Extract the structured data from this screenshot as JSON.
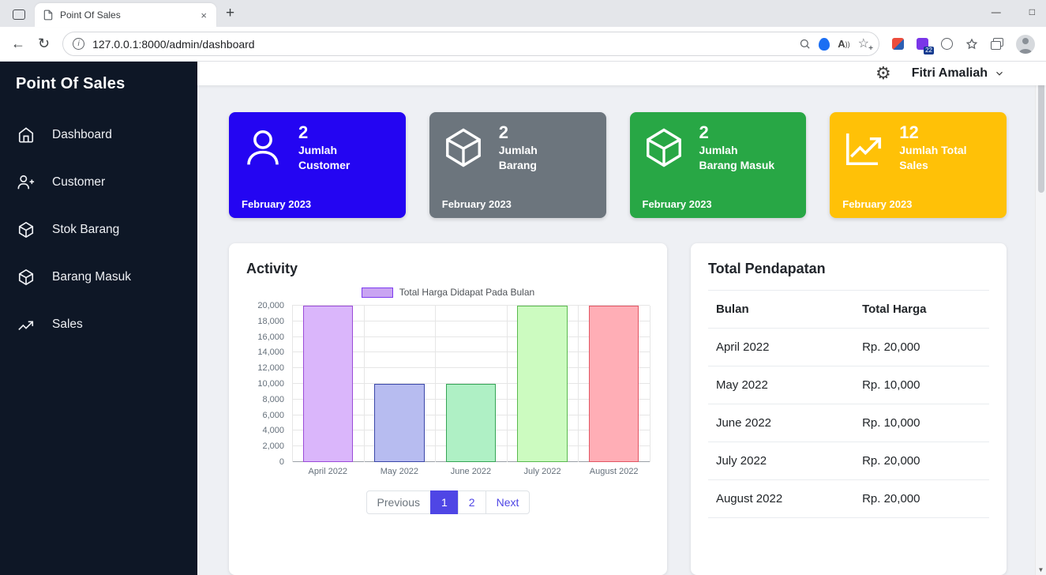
{
  "theme": {
    "accent": "#4f46e5",
    "sidebar_bg": "#0e1726",
    "content_bg": "#eef0f4"
  },
  "icons": {
    "gear": "⚙",
    "back": "←",
    "refresh": "↻",
    "new_tab": "+",
    "tab_close": "×",
    "minimize": "—",
    "restore": "□",
    "info": "i",
    "read_aloud": "A",
    "read_aloud_waves": "))",
    "favorite_star": "☆",
    "favorite_add": "+",
    "scroll_up": "▲",
    "scroll_down": "▼"
  },
  "browser": {
    "tab_title": "Point Of Sales",
    "url_host": "127.0.0.1:8000",
    "url_path": "/admin/dashboard",
    "extension_badge": "22"
  },
  "sidebar": {
    "title": "Point Of Sales",
    "items": [
      {
        "label": "Dashboard"
      },
      {
        "label": "Customer"
      },
      {
        "label": "Stok Barang"
      },
      {
        "label": "Barang Masuk"
      },
      {
        "label": "Sales"
      }
    ]
  },
  "header": {
    "user_name": "Fitri Amaliah"
  },
  "stats": [
    {
      "value": "2",
      "label_lines": [
        "Jumlah",
        "Customer"
      ],
      "period": "February 2023",
      "color": "#2405f2"
    },
    {
      "value": "2",
      "label_lines": [
        "Jumlah",
        "Barang"
      ],
      "period": "February 2023",
      "color": "#6c757d"
    },
    {
      "value": "2",
      "label_lines": [
        "Jumlah",
        "Barang Masuk"
      ],
      "period": "February 2023",
      "color": "#28a745"
    },
    {
      "value": "12",
      "label_lines": [
        "Jumlah Total",
        "Sales"
      ],
      "period": "February 2023",
      "color": "#ffc107"
    }
  ],
  "activity": {
    "title": "Activity",
    "pagination": {
      "previous": "Previous",
      "pages": [
        "1",
        "2"
      ],
      "active": "1",
      "next": "Next"
    }
  },
  "chart_data": {
    "type": "bar",
    "title": "Activity",
    "legend": "Total Harga Didapat Pada Bulan",
    "legend_position": "top",
    "categories": [
      "April 2022",
      "May 2022",
      "June 2022",
      "July 2022",
      "August 2022"
    ],
    "values": [
      20000,
      10000,
      10000,
      20000,
      20000
    ],
    "bar_colors": [
      {
        "fill": "#dab6fb",
        "border": "#9a4bd8"
      },
      {
        "fill": "#b7bcf0",
        "border": "#3b47a8"
      },
      {
        "fill": "#aff0c5",
        "border": "#35a455"
      },
      {
        "fill": "#ccfbc0",
        "border": "#59b94e"
      },
      {
        "fill": "#ffaeb6",
        "border": "#e25563"
      }
    ],
    "legend_swatch": {
      "fill": "#c9a4f2",
      "border": "#7d3bf0"
    },
    "xlabel": "",
    "ylabel": "",
    "ylim": [
      0,
      20000
    ],
    "ytick_step": 2000,
    "grid": true
  },
  "pendapatan": {
    "title": "Total Pendapatan",
    "columns": [
      "Bulan",
      "Total Harga"
    ],
    "rows": [
      {
        "bulan": "April 2022",
        "total": "Rp. 20,000"
      },
      {
        "bulan": "May 2022",
        "total": "Rp. 10,000"
      },
      {
        "bulan": "June 2022",
        "total": "Rp. 10,000"
      },
      {
        "bulan": "July 2022",
        "total": "Rp. 20,000"
      },
      {
        "bulan": "August 2022",
        "total": "Rp. 20,000"
      }
    ]
  }
}
